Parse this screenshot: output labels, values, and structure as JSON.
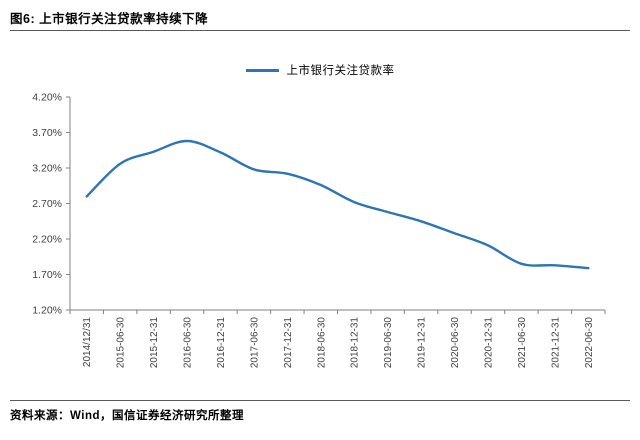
{
  "header": {
    "title": "图6: 上市银行关注贷款率持续下降"
  },
  "legend": {
    "label": "上市银行关注贷款率"
  },
  "footer": {
    "source": "资料来源：Wind，国信证券经济研究所整理"
  },
  "colors": {
    "line": "#2E75B6",
    "axis": "#808080",
    "tick_text": "#404040",
    "rule": "#595959"
  },
  "chart_data": {
    "type": "line",
    "title": "上市银行关注贷款率",
    "categories": [
      "2014/12/31",
      "2015-06-30",
      "2015-12-31",
      "2016-06-30",
      "2016-12-31",
      "2017-06-30",
      "2017-12-31",
      "2018-06-30",
      "2018-12-31",
      "2019-06-30",
      "2019-12-31",
      "2020-06-30",
      "2020-12-31",
      "2021-06-30",
      "2021-12-31",
      "2022-06-30"
    ],
    "series": [
      {
        "name": "上市银行关注贷款率",
        "values": [
          2.8,
          3.26,
          3.43,
          3.58,
          3.42,
          3.18,
          3.12,
          2.96,
          2.72,
          2.58,
          2.45,
          2.28,
          2.11,
          1.85,
          1.83,
          1.79
        ]
      }
    ],
    "ylim": [
      1.2,
      4.2
    ],
    "yticks": {
      "values": [
        1.2,
        1.7,
        2.2,
        2.7,
        3.2,
        3.7,
        4.2
      ],
      "labels": [
        "1.20%",
        "1.70%",
        "2.20%",
        "2.70%",
        "3.20%",
        "3.70%",
        "4.20%"
      ]
    },
    "grid": false,
    "legend_position": "top-center"
  }
}
